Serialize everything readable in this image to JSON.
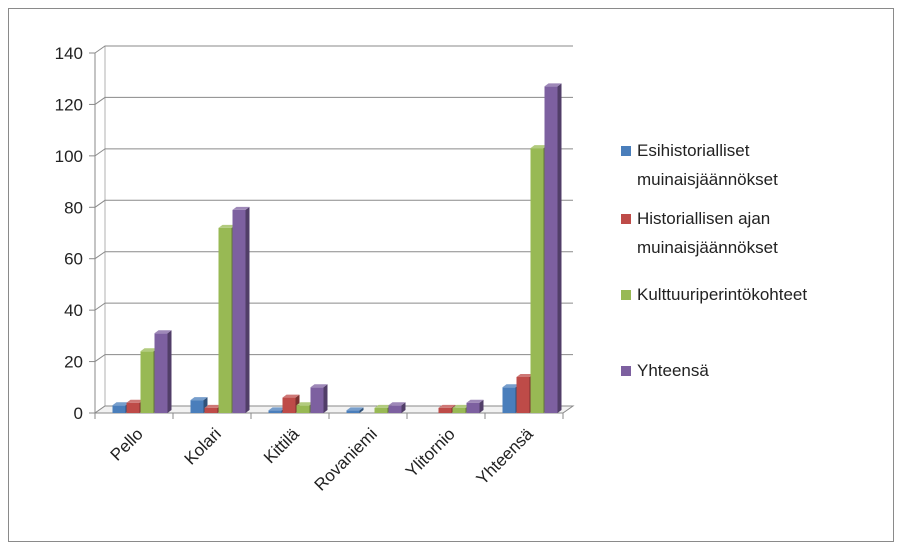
{
  "chart_data": {
    "type": "bar",
    "subtype": "3d-clustered-column",
    "categories": [
      "Pello",
      "Kolari",
      "Kittilä",
      "Rovaniemi",
      "Ylitornio",
      "Yhteensä"
    ],
    "series": [
      {
        "name": "Esihistorialliset muinaisjäännökset",
        "name_lines": [
          "Esihistorialliset",
          "muinaisjäännökset"
        ],
        "color": "#4a7ebb",
        "values": [
          3,
          5,
          1,
          1,
          0,
          10
        ]
      },
      {
        "name": "Historiallisen ajan muinaisjäännökset",
        "name_lines": [
          "Historiallisen ajan",
          "muinaisjäännökset"
        ],
        "color": "#be4b48",
        "values": [
          4,
          2,
          6,
          0,
          2,
          14
        ]
      },
      {
        "name": "Kulttuuriperintökohteet",
        "name_lines": [
          "Kulttuuriperintökohteet"
        ],
        "color": "#98b954",
        "values": [
          24,
          72,
          3,
          2,
          2,
          103
        ]
      },
      {
        "name": "Yhteensä",
        "name_lines": [
          "Yhteensä"
        ],
        "color": "#7d60a0",
        "values": [
          31,
          79,
          10,
          3,
          4,
          127
        ]
      }
    ],
    "ylim": [
      0,
      140
    ],
    "yticks": [
      0,
      20,
      40,
      60,
      80,
      100,
      120,
      140
    ],
    "grid": true,
    "legend": "right"
  }
}
